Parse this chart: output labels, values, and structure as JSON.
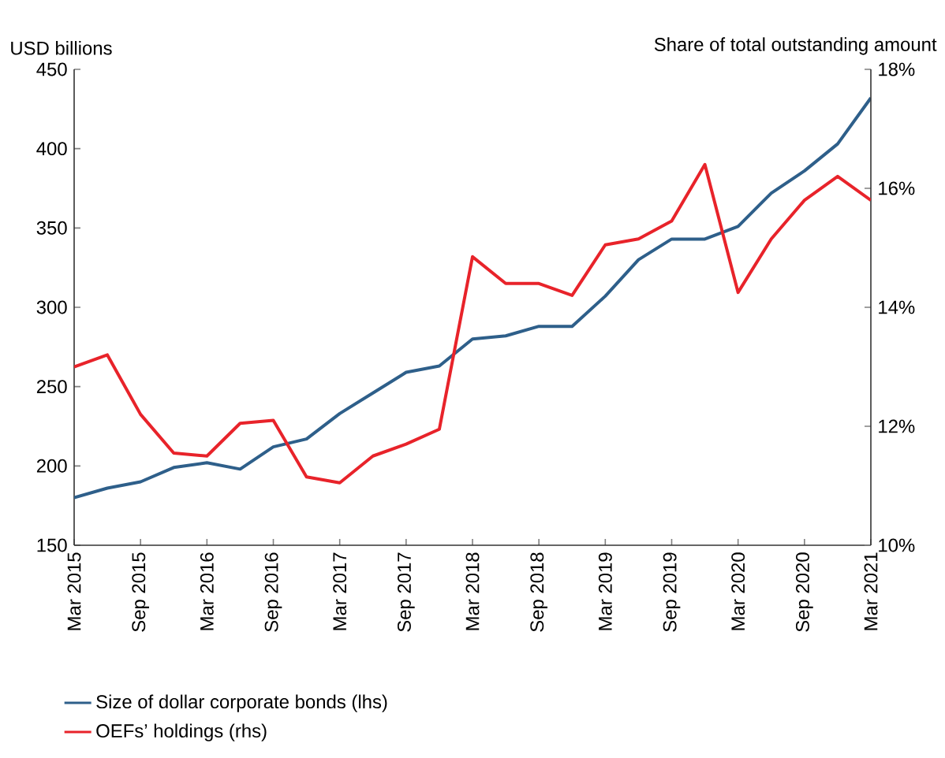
{
  "chart_data": {
    "type": "line",
    "ylabel": "USD billions",
    "y2label": "Share of total outstanding amount",
    "categories": [
      "Mar 2015",
      null,
      "Sep 2015",
      null,
      "Mar 2016",
      null,
      "Sep 2016",
      null,
      "Mar 2017",
      null,
      "Sep 2017",
      null,
      "Mar 2018",
      null,
      "Sep 2018",
      null,
      "Mar 2019",
      null,
      "Sep 2019",
      null,
      "Mar 2020",
      null,
      "Sep 2020",
      null,
      "Mar 2021"
    ],
    "series": [
      {
        "name": "Size of dollar corporate bonds (lhs)",
        "color": "#2e5f8a",
        "values": [
          180,
          186,
          190,
          199,
          202,
          198,
          212,
          217,
          233,
          246,
          259,
          263,
          280,
          282,
          288,
          288,
          307,
          330,
          343,
          343,
          351,
          372,
          386,
          403,
          432
        ]
      },
      {
        "name": "OEFs’ holdings (rhs)",
        "color": "#e8232a",
        "axis": "y2",
        "values": [
          13.0,
          13.2,
          12.2,
          11.55,
          11.5,
          12.05,
          12.1,
          11.15,
          11.05,
          11.5,
          11.7,
          11.95,
          14.85,
          14.4,
          14.4,
          14.2,
          15.05,
          15.15,
          15.45,
          16.4,
          14.25,
          15.15,
          15.8,
          16.2,
          15.8
        ]
      }
    ],
    "ylim": [
      150,
      450
    ],
    "yticks": [
      150,
      200,
      250,
      300,
      350,
      400,
      450
    ],
    "y2lim": [
      10,
      18
    ],
    "y2ticks": [
      {
        "value": 10,
        "label": "10%"
      },
      {
        "value": 12,
        "label": "12%"
      },
      {
        "value": 14,
        "label": "14%"
      },
      {
        "value": 16,
        "label": "16%"
      },
      {
        "value": 18,
        "label": "18%"
      }
    ],
    "legend": "bottom",
    "grid": false,
    "marker": "none",
    "line_style": "solid"
  }
}
